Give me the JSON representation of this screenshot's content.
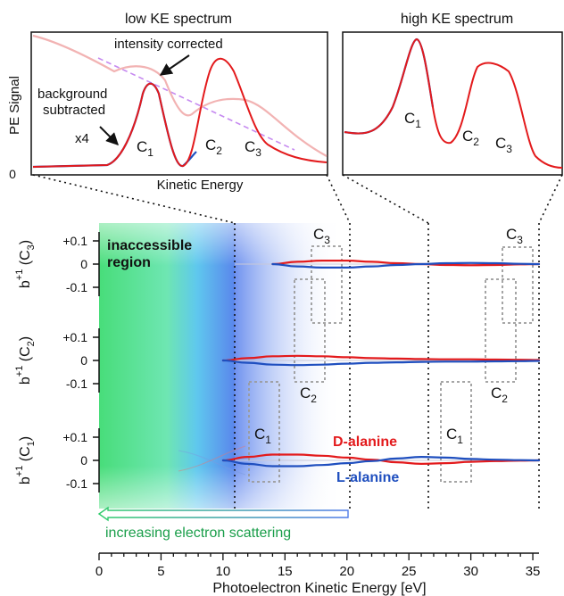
{
  "colors": {
    "d": "#e31a1c",
    "l": "#1f4fbf",
    "corrected": "#f2b3b3",
    "background": "#c68af0",
    "box": "#9a9a9a",
    "green": "#2fcc6a",
    "blue": "#4f7ae8",
    "text_green": "#1a9e4a"
  },
  "low_panel": {
    "title": "low KE spectrum",
    "ylabel": "PE Signal",
    "xlabel": "Kinetic Energy",
    "y_zero": "0",
    "ann_corrected": "intensity corrected",
    "ann_bg_1": "background",
    "ann_bg_2": "subtracted",
    "ann_x4": "x4",
    "peaks": [
      {
        "b": "C",
        "s": "1"
      },
      {
        "b": "C",
        "s": "2"
      },
      {
        "b": "C",
        "s": "3"
      }
    ]
  },
  "high_panel": {
    "title": "high KE spectrum",
    "peaks": [
      {
        "b": "C",
        "s": "1"
      },
      {
        "b": "C",
        "s": "2"
      },
      {
        "b": "C",
        "s": "3"
      }
    ]
  },
  "region_label_1": "inaccessible",
  "region_label_2": "region",
  "scatter_label": "increasing electron scattering",
  "legend": {
    "d": "D-alanine",
    "l": "L-alanine"
  },
  "rows": [
    {
      "label_b": "b",
      "label_sup": "+1",
      "label_c": "C",
      "label_sub": "3",
      "ticks": [
        "+0.1",
        "0",
        "-0.1"
      ]
    },
    {
      "label_b": "b",
      "label_sup": "+1",
      "label_c": "C",
      "label_sub": "2",
      "ticks": [
        "+0.1",
        "0",
        "-0.1"
      ]
    },
    {
      "label_b": "b",
      "label_sup": "+1",
      "label_c": "C",
      "label_sub": "1",
      "ticks": [
        "+0.1",
        "0",
        "-0.1"
      ]
    }
  ],
  "box_labels": {
    "row0": [
      {
        "b": "C",
        "s": "3"
      },
      {
        "b": "C",
        "s": "3"
      }
    ],
    "row1": [
      {
        "b": "C",
        "s": "2"
      },
      {
        "b": "C",
        "s": "2"
      }
    ],
    "row2": [
      {
        "b": "C",
        "s": "1"
      },
      {
        "b": "C",
        "s": "1"
      }
    ]
  },
  "chart_data": {
    "type": "line",
    "xlabel": "Photoelectron Kinetic Energy [eV]",
    "xlim": [
      0,
      35
    ],
    "x_ticks": [
      0,
      5,
      10,
      15,
      20,
      25,
      30,
      35
    ],
    "inaccessible_region_ev": [
      0,
      11
    ],
    "boundaries_ev": [
      11,
      20,
      26.5,
      35.5
    ],
    "ylim": [
      -0.15,
      0.15
    ],
    "series": [
      {
        "name": "D-alanine",
        "row": "C3",
        "x": [
          14,
          16,
          18,
          20,
          22,
          24,
          26,
          28,
          30,
          32,
          34,
          35.5
        ],
        "y": [
          0,
          0.01,
          0.015,
          0.015,
          0.01,
          0.004,
          0,
          -0.004,
          -0.005,
          -0.004,
          -0.001,
          0
        ]
      },
      {
        "name": "L-alanine",
        "row": "C3",
        "x": [
          14,
          16,
          18,
          20,
          22,
          24,
          26,
          28,
          30,
          32,
          34,
          35.5
        ],
        "y": [
          0,
          -0.01,
          -0.015,
          -0.015,
          -0.01,
          -0.004,
          0,
          0.004,
          0.005,
          0.004,
          0.001,
          0
        ]
      },
      {
        "name": "D-alanine",
        "row": "C2",
        "x": [
          10,
          12,
          14,
          16,
          18,
          20,
          22,
          24,
          26,
          28,
          30,
          32,
          34,
          35.5
        ],
        "y": [
          0,
          0.01,
          0.018,
          0.02,
          0.018,
          0.014,
          0.01,
          0.008,
          0.006,
          0.005,
          0.005,
          0.004,
          0.003,
          0.002
        ]
      },
      {
        "name": "L-alanine",
        "row": "C2",
        "x": [
          10,
          12,
          14,
          16,
          18,
          20,
          22,
          24,
          26,
          28,
          30,
          32,
          34,
          35.5
        ],
        "y": [
          0,
          -0.01,
          -0.018,
          -0.02,
          -0.018,
          -0.014,
          -0.01,
          -0.008,
          -0.006,
          -0.005,
          -0.005,
          -0.004,
          -0.003,
          -0.002
        ]
      },
      {
        "name": "D-alanine",
        "row": "C1",
        "x": [
          10,
          12,
          14,
          16,
          18,
          20,
          22,
          24,
          26,
          28,
          30,
          32,
          34,
          35.5
        ],
        "y": [
          0,
          0.015,
          0.025,
          0.025,
          0.02,
          0.012,
          0.003,
          -0.008,
          -0.015,
          -0.012,
          -0.006,
          -0.003,
          -0.001,
          0
        ]
      },
      {
        "name": "L-alanine",
        "row": "C1",
        "x": [
          10,
          12,
          14,
          16,
          18,
          20,
          22,
          24,
          26,
          28,
          30,
          32,
          34,
          35.5
        ],
        "y": [
          0,
          -0.015,
          -0.025,
          -0.025,
          -0.02,
          -0.012,
          -0.003,
          0.008,
          0.015,
          0.012,
          0.006,
          0.003,
          0.001,
          0
        ]
      }
    ]
  }
}
